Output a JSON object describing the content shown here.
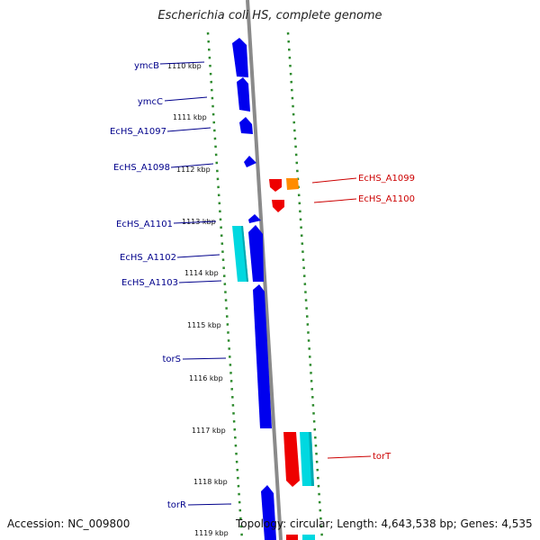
{
  "title": "Escherichia coli HS, complete genome",
  "footer": {
    "accession": "Accession: NC_009800",
    "topology": "Topology: circular; Length: 4,643,538 bp; Genes: 4,535"
  },
  "scale_ticks": [
    {
      "label": "1110 kbp"
    },
    {
      "label": "1111 kbp"
    },
    {
      "label": "1112 kbp"
    },
    {
      "label": "1113 kbp"
    },
    {
      "label": "1114 kbp"
    },
    {
      "label": "1115 kbp"
    },
    {
      "label": "1116 kbp"
    },
    {
      "label": "1117 kbp"
    },
    {
      "label": "1118 kbp"
    },
    {
      "label": "1119 kbp"
    }
  ],
  "genes_left": [
    {
      "name": "ymcB"
    },
    {
      "name": "ymcC"
    },
    {
      "name": "EcHS_A1097"
    },
    {
      "name": "EcHS_A1098"
    },
    {
      "name": "EcHS_A1101"
    },
    {
      "name": "EcHS_A1102"
    },
    {
      "name": "EcHS_A1103"
    },
    {
      "name": "torS"
    },
    {
      "name": "torR"
    }
  ],
  "genes_right": [
    {
      "name": "EcHS_A1099"
    },
    {
      "name": "EcHS_A1100"
    },
    {
      "name": "torT"
    }
  ],
  "colors": {
    "plus_strand_gene": "#0000ee",
    "plus_strand_cyan": "#00d8e0",
    "minus_strand_gene": "#ee0000",
    "minus_strand_orange": "#ff8c00",
    "left_label": "#00008b",
    "right_label": "#cc0000",
    "backbone": "#888888",
    "tick_marks": "#2e8b2e"
  }
}
